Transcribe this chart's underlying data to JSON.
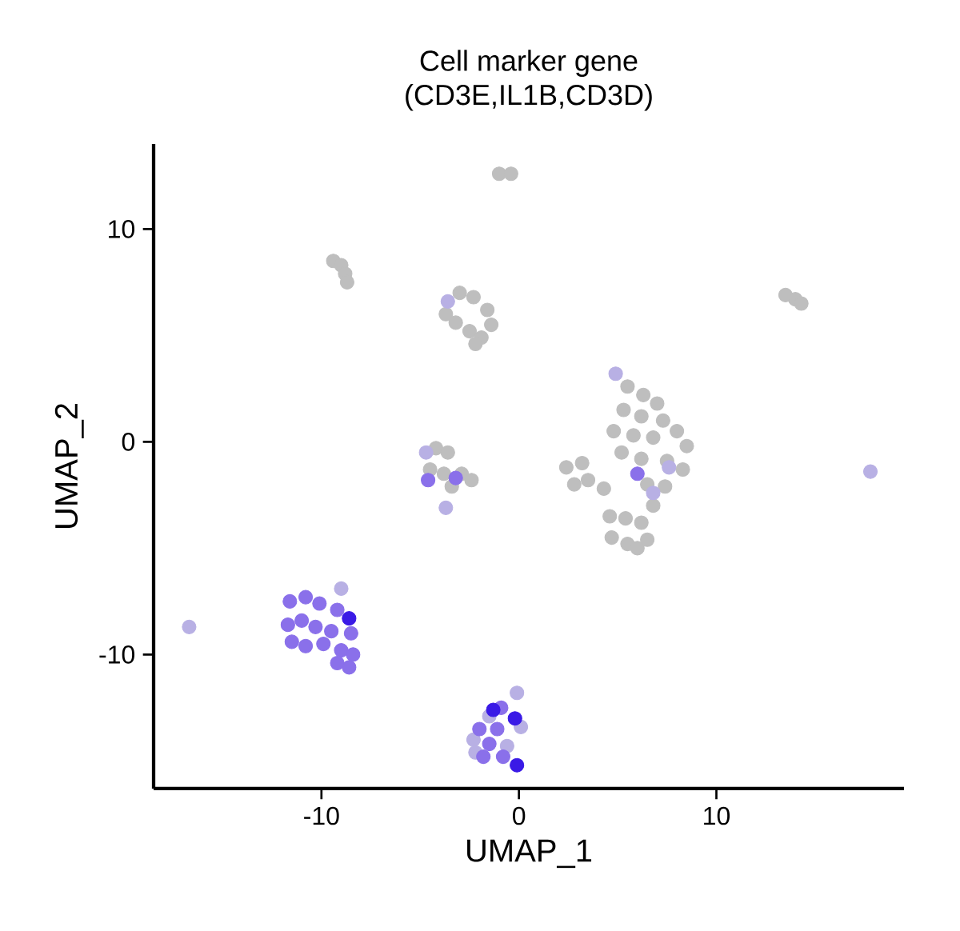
{
  "chart_data": {
    "type": "scatter",
    "title": "Cell marker gene",
    "subtitle": "(CD3E,IL1B,CD3D)",
    "xlabel": "UMAP_1",
    "ylabel": "UMAP_2",
    "xlim": [
      -18.5,
      19.5
    ],
    "ylim": [
      -16.3,
      14
    ],
    "xticks": [
      -10,
      0,
      10
    ],
    "yticks": [
      -10,
      0,
      10
    ],
    "series": [
      {
        "color": "#bebebe",
        "x": [
          -1.0,
          -0.4,
          -9.4,
          -9.0,
          -8.8,
          -8.7,
          -3.0,
          -2.3,
          -1.6,
          -1.4,
          -1.9,
          -2.5,
          -3.2,
          -3.7,
          -2.2,
          13.5,
          14.0,
          14.3,
          -4.2,
          -3.6,
          -4.5,
          -3.8,
          -2.9,
          -2.4,
          -3.4,
          5.5,
          6.3,
          7.0,
          5.3,
          6.2,
          7.3,
          8.0,
          4.8,
          5.8,
          6.8,
          8.5,
          5.2,
          6.2,
          7.5,
          8.3,
          2.4,
          3.2,
          3.5,
          2.8,
          4.3,
          6.5,
          7.4,
          6.8,
          4.6,
          5.4,
          6.2,
          4.7,
          5.5,
          6.5,
          6.0
        ],
        "values": [
          12.6,
          12.6,
          8.5,
          8.3,
          7.9,
          7.5,
          7.0,
          6.8,
          6.2,
          5.5,
          4.9,
          5.2,
          5.6,
          6.0,
          4.6,
          6.9,
          6.7,
          6.5,
          -0.3,
          -0.5,
          -1.3,
          -1.5,
          -1.5,
          -1.8,
          -2.1,
          2.6,
          2.2,
          1.8,
          1.5,
          1.2,
          1.0,
          0.5,
          0.5,
          0.3,
          0.2,
          -0.2,
          -0.5,
          -0.8,
          -0.9,
          -1.3,
          -1.2,
          -1.0,
          -1.8,
          -2.0,
          -2.2,
          -2.0,
          -2.1,
          -3.0,
          -3.5,
          -3.6,
          -3.8,
          -4.5,
          -4.8,
          -4.6,
          -5.0
        ]
      },
      {
        "color": "#b8b0e4",
        "x": [
          17.8,
          -16.7,
          -9.0,
          4.9,
          6.8,
          7.6,
          -4.7,
          -3.7,
          -0.1,
          -1.5,
          0.1,
          -2.3,
          -0.6,
          -2.2,
          -3.6
        ],
        "values": [
          -1.4,
          -8.7,
          -6.9,
          3.2,
          -2.4,
          -1.2,
          -0.5,
          -3.1,
          -11.8,
          -12.9,
          -13.4,
          -14.0,
          -14.3,
          -14.6,
          6.6
        ]
      },
      {
        "color": "#8a70ea",
        "x": [
          -11.6,
          -10.8,
          -10.1,
          -9.2,
          -11.7,
          -11.0,
          -10.3,
          -9.5,
          -8.5,
          -11.5,
          -10.8,
          -9.9,
          -9.0,
          -8.4,
          -8.6,
          -9.2,
          -4.6,
          -3.2,
          6.0,
          -0.9,
          -2.0,
          -1.1,
          -1.5,
          -1.8,
          -0.8
        ],
        "values": [
          -7.5,
          -7.3,
          -7.6,
          -7.9,
          -8.6,
          -8.4,
          -8.7,
          -8.9,
          -9.0,
          -9.4,
          -9.6,
          -9.5,
          -9.8,
          -10.0,
          -10.6,
          -10.4,
          -1.8,
          -1.7,
          -1.5,
          -12.5,
          -13.5,
          -13.5,
          -14.2,
          -14.8,
          -14.8
        ]
      },
      {
        "color": "#3a1ae6",
        "x": [
          -8.6,
          -1.3,
          -0.2,
          -0.1
        ],
        "values": [
          -8.3,
          -12.6,
          -13.0,
          -15.2
        ]
      }
    ]
  }
}
